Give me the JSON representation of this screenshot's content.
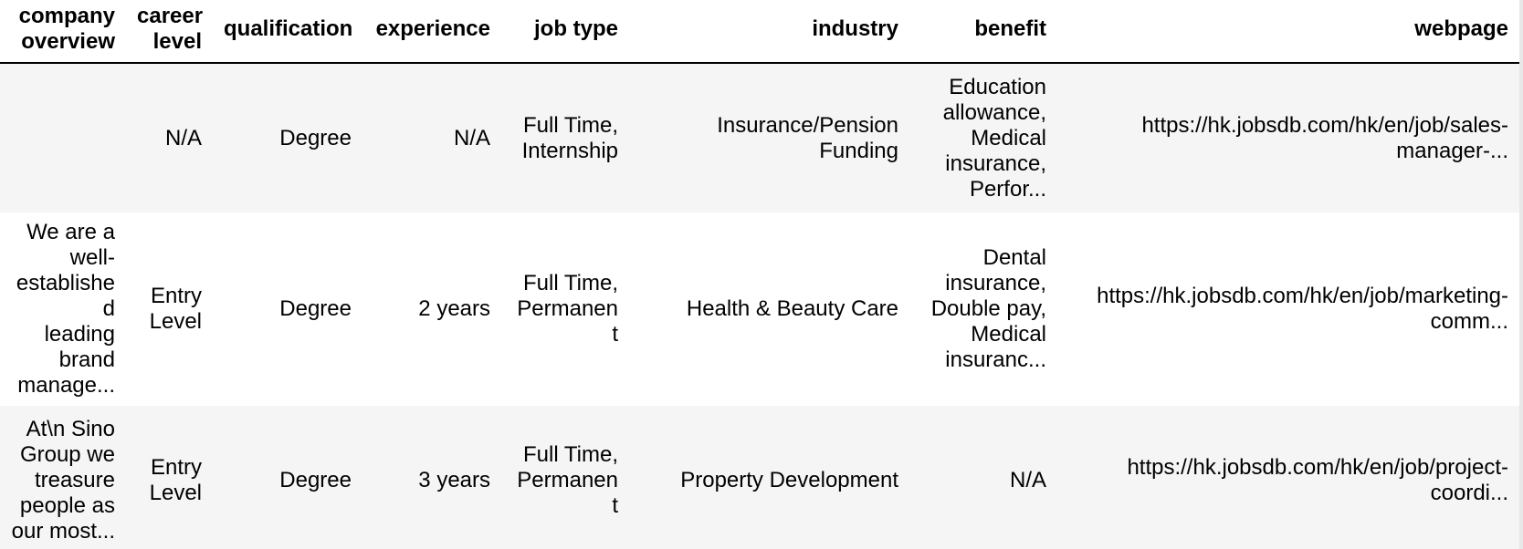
{
  "table": {
    "columns": [
      "company\noverview",
      "career\nlevel",
      "qualification",
      "experience",
      "job type",
      "industry",
      "benefit",
      "webpage"
    ],
    "rows": [
      [
        "",
        "N/A",
        "Degree",
        "N/A",
        "Full Time,\nInternship",
        "Insurance/Pension\nFunding",
        "Education\nallowance,\nMedical\ninsurance,\nPerfor...",
        "https://hk.jobsdb.com/hk/en/job/sales-\nmanager-..."
      ],
      [
        "We are a\nwell-\nestablished\nleading\nbrand\nmanage...",
        "Entry\nLevel",
        "Degree",
        "2 years",
        "Full Time,\nPermanent",
        "Health & Beauty Care",
        "Dental\ninsurance,\nDouble pay,\nMedical\ninsuranc...",
        "https://hk.jobsdb.com/hk/en/job/marketing-\ncomm..."
      ],
      [
        "At\\n Sino\nGroup we\ntreasure\npeople as\nour most...",
        "Entry\nLevel",
        "Degree",
        "3 years",
        "Full Time,\nPermanent",
        "Property Development",
        "N/A",
        "https://hk.jobsdb.com/hk/en/job/project-\ncoordi..."
      ]
    ]
  }
}
